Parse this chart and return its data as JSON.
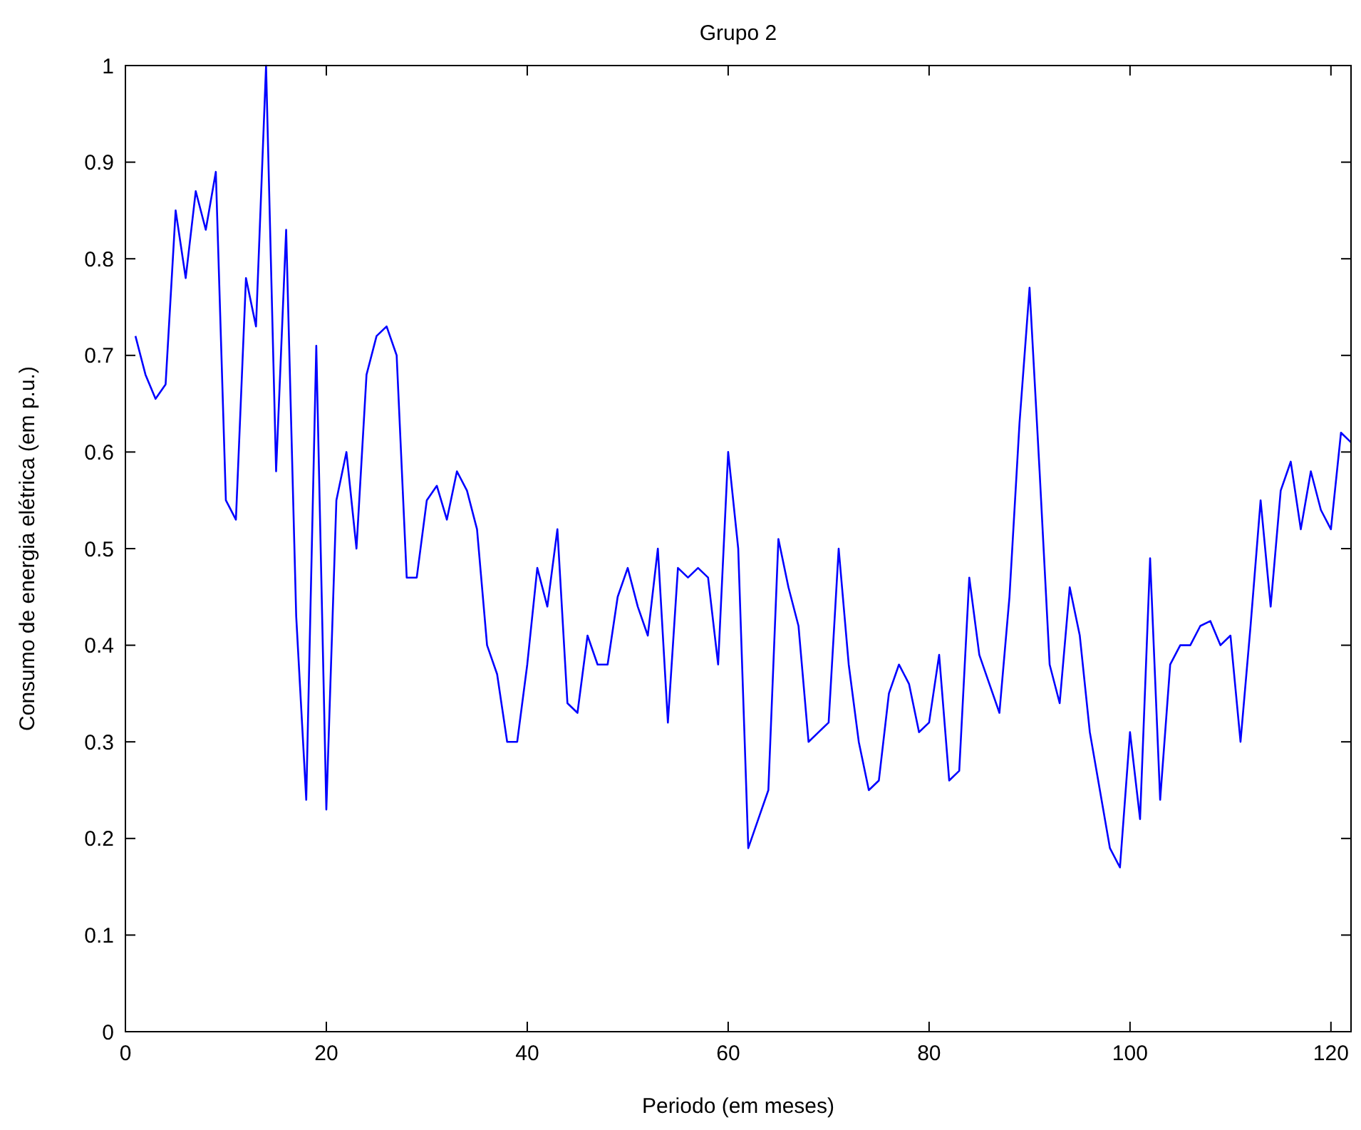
{
  "chart_data": {
    "type": "line",
    "title": "Grupo 2",
    "xlabel": "Periodo (em meses)",
    "ylabel": "Consumo de energia elétrica (em p.u.)",
    "x": [
      1,
      2,
      3,
      4,
      5,
      6,
      7,
      8,
      9,
      10,
      11,
      12,
      13,
      14,
      15,
      16,
      17,
      18,
      19,
      20,
      21,
      22,
      23,
      24,
      25,
      26,
      27,
      28,
      29,
      30,
      31,
      32,
      33,
      34,
      35,
      36,
      37,
      38,
      39,
      40,
      41,
      42,
      43,
      44,
      45,
      46,
      47,
      48,
      49,
      50,
      51,
      52,
      53,
      54,
      55,
      56,
      57,
      58,
      59,
      60,
      61,
      62,
      63,
      64,
      65,
      66,
      67,
      68,
      69,
      70,
      71,
      72,
      73,
      74,
      75,
      76,
      77,
      78,
      79,
      80,
      81,
      82,
      83,
      84,
      85,
      86,
      87,
      88,
      89,
      90,
      91,
      92,
      93,
      94,
      95,
      96,
      97,
      98,
      99,
      100,
      101,
      102,
      103,
      104,
      105,
      106,
      107,
      108,
      109,
      110,
      111,
      112,
      113,
      114,
      115,
      116,
      117,
      118,
      119,
      120,
      121,
      122
    ],
    "series": [
      {
        "color": "#0000ff",
        "values": [
          0.72,
          0.68,
          0.655,
          0.67,
          0.85,
          0.78,
          0.87,
          0.83,
          0.89,
          0.55,
          0.53,
          0.78,
          0.73,
          1.0,
          0.58,
          0.83,
          0.43,
          0.24,
          0.71,
          0.23,
          0.55,
          0.6,
          0.5,
          0.68,
          0.72,
          0.73,
          0.7,
          0.47,
          0.47,
          0.55,
          0.565,
          0.53,
          0.58,
          0.56,
          0.52,
          0.4,
          0.37,
          0.3,
          0.3,
          0.38,
          0.48,
          0.44,
          0.52,
          0.34,
          0.33,
          0.41,
          0.38,
          0.38,
          0.45,
          0.48,
          0.44,
          0.41,
          0.5,
          0.32,
          0.48,
          0.47,
          0.48,
          0.47,
          0.38,
          0.6,
          0.5,
          0.19,
          0.22,
          0.25,
          0.51,
          0.46,
          0.42,
          0.3,
          0.31,
          0.32,
          0.5,
          0.38,
          0.3,
          0.25,
          0.26,
          0.35,
          0.38,
          0.36,
          0.31,
          0.32,
          0.39,
          0.26,
          0.27,
          0.47,
          0.39,
          0.36,
          0.33,
          0.45,
          0.63,
          0.77,
          0.58,
          0.38,
          0.34,
          0.46,
          0.41,
          0.31,
          0.25,
          0.19,
          0.17,
          0.31,
          0.22,
          0.49,
          0.24,
          0.38,
          0.4,
          0.4,
          0.42,
          0.425,
          0.4,
          0.41,
          0.3,
          0.42,
          0.55,
          0.44,
          0.56,
          0.59,
          0.52,
          0.58,
          0.54,
          0.52,
          0.62,
          0.61
        ]
      }
    ],
    "xlim": [
      0,
      122
    ],
    "xticks": [
      0,
      20,
      40,
      60,
      80,
      100,
      120
    ],
    "ylim": [
      0,
      1
    ],
    "yticks": [
      0,
      0.1,
      0.2,
      0.3,
      0.4,
      0.5,
      0.6,
      0.7,
      0.8,
      0.9,
      1
    ],
    "grid": false,
    "marker": "none",
    "line_style": "solid"
  }
}
